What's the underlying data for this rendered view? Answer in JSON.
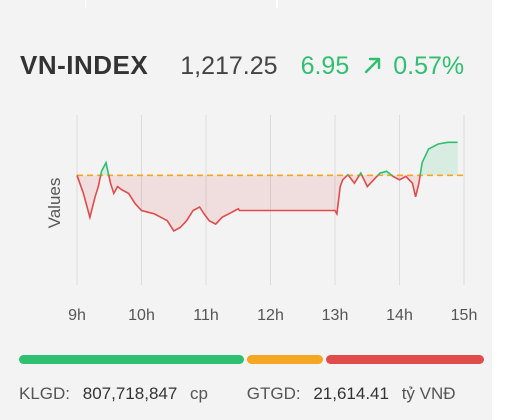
{
  "header": {
    "index_name": "VN-INDEX",
    "value": "1,217.25",
    "change": "6.95",
    "change_pct": "0.57%",
    "trend_icon": "arrow-up-right-icon",
    "up_color": "#2fbf71"
  },
  "chart_data": {
    "type": "area",
    "ylabel": "Values",
    "x_ticks": [
      "9h",
      "10h",
      "11h",
      "12h",
      "13h",
      "14h",
      "15h"
    ],
    "reference_value": 1210.3,
    "reference_line": "dashed",
    "ylim": [
      1184,
      1228
    ],
    "colors": {
      "above": "#2fbf71",
      "below": "#e04b4b",
      "reference": "#f5a623"
    },
    "grid": "vertical",
    "series": [
      {
        "x": [
          9.0,
          9.1,
          9.2,
          9.28,
          9.33,
          9.38,
          9.45,
          9.52,
          9.57,
          9.63,
          9.7,
          9.8,
          9.9,
          10.0,
          10.1,
          10.2,
          10.3,
          10.4,
          10.5,
          10.6,
          10.7,
          10.8,
          10.9,
          10.97,
          11.05,
          11.15,
          11.25,
          11.35,
          11.45,
          11.5,
          11.52,
          13.0,
          13.03,
          13.08,
          13.12,
          13.2,
          13.3,
          13.4,
          13.5,
          13.6,
          13.7,
          13.8,
          13.9,
          14.0,
          14.1,
          14.2,
          14.25,
          14.3,
          14.35,
          14.45,
          14.6,
          14.75,
          14.9
        ],
        "y": [
          1210.3,
          1205.0,
          1198.0,
          1204.0,
          1207.0,
          1211.5,
          1214.0,
          1208.0,
          1205.0,
          1207.0,
          1206.0,
          1205.0,
          1202.0,
          1200.0,
          1199.5,
          1199.0,
          1198.0,
          1197.0,
          1194.0,
          1195.0,
          1197.0,
          1200.0,
          1201.0,
          1199.0,
          1197.0,
          1196.0,
          1198.0,
          1199.0,
          1200.0,
          1200.5,
          1200.0,
          1200.0,
          1199.0,
          1207.0,
          1209.0,
          1210.5,
          1208.0,
          1211.0,
          1207.0,
          1209.0,
          1211.0,
          1211.5,
          1210.0,
          1209.0,
          1210.0,
          1208.0,
          1204.0,
          1208.0,
          1214.0,
          1218.0,
          1219.5,
          1220.0,
          1220.0
        ]
      }
    ]
  },
  "breadth_bar": {
    "segments": [
      {
        "name": "up",
        "fraction": 0.49,
        "color": "#2fbf71"
      },
      {
        "name": "unchanged",
        "fraction": 0.17,
        "color": "#f5a623"
      },
      {
        "name": "down",
        "fraction": 0.34,
        "color": "#e04b4b"
      }
    ]
  },
  "footer": {
    "klgd_label": "KLGD:",
    "klgd_value": "807,718,847",
    "klgd_unit": "cp",
    "gtgd_label": "GTGD:",
    "gtgd_value": "21,614.41",
    "gtgd_unit": "tỷ VNĐ"
  }
}
